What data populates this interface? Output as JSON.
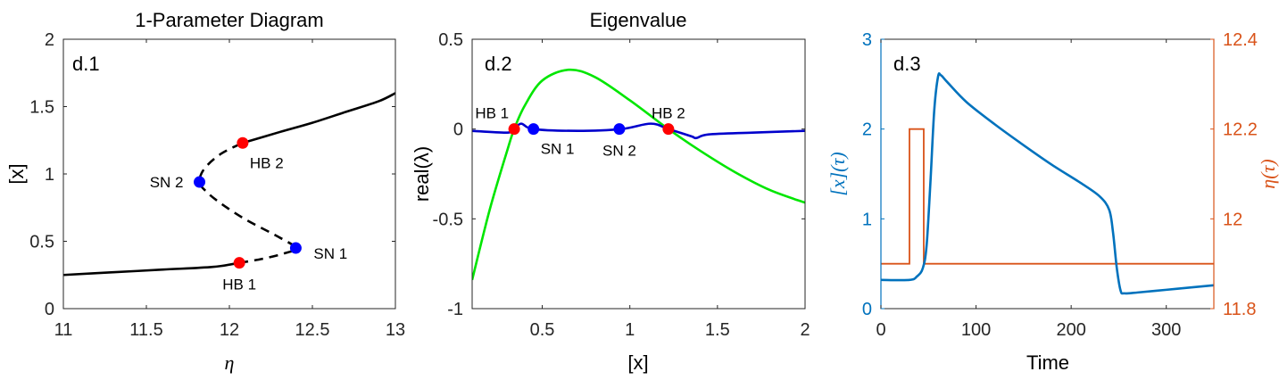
{
  "chart_data": [
    {
      "type": "line",
      "title": "1-Parameter Diagram",
      "panel_label": "d.1",
      "xlabel": "η",
      "ylabel": "[x]",
      "xlim": [
        11,
        13
      ],
      "ylim": [
        0,
        2
      ],
      "xticks": [
        "11",
        "11.5",
        "12",
        "12.5",
        "13"
      ],
      "yticks": [
        "0",
        "0.5",
        "1",
        "1.5",
        "2"
      ],
      "grid": false,
      "series": [
        {
          "style": "solid",
          "color": "#000000",
          "x": [
            11.0,
            11.3,
            11.6,
            11.9,
            12.06
          ],
          "y": [
            0.25,
            0.27,
            0.29,
            0.31,
            0.34
          ]
        },
        {
          "style": "dashed",
          "color": "#000000",
          "x": [
            12.06,
            12.2,
            12.33,
            12.4,
            12.3,
            12.1,
            11.95,
            11.86,
            11.82,
            11.85,
            11.95,
            12.08
          ],
          "y": [
            0.34,
            0.37,
            0.41,
            0.45,
            0.53,
            0.66,
            0.78,
            0.87,
            0.94,
            1.04,
            1.15,
            1.23
          ]
        },
        {
          "style": "solid",
          "color": "#000000",
          "x": [
            12.08,
            12.3,
            12.5,
            12.7,
            12.9,
            13.0
          ],
          "y": [
            1.23,
            1.31,
            1.38,
            1.46,
            1.54,
            1.6
          ]
        }
      ],
      "points": [
        {
          "label": "HB 2",
          "x": 12.08,
          "y": 1.23,
          "color": "#ff0000",
          "label_pos": "below-right"
        },
        {
          "label": "SN 2",
          "x": 11.82,
          "y": 0.94,
          "color": "#0000ff",
          "label_pos": "left"
        },
        {
          "label": "SN 1",
          "x": 12.4,
          "y": 0.45,
          "color": "#0000ff",
          "label_pos": "right"
        },
        {
          "label": "HB 1",
          "x": 12.06,
          "y": 0.34,
          "color": "#ff0000",
          "label_pos": "below"
        }
      ]
    },
    {
      "type": "line",
      "title": "Eigenvalue",
      "panel_label": "d.2",
      "xlabel": "[x]",
      "ylabel": "real(λ)",
      "xlim": [
        0.1,
        2
      ],
      "ylim": [
        -1,
        0.5
      ],
      "xticks": [
        0.5,
        1,
        1.5,
        2
      ],
      "yticks": [
        -1,
        -0.5,
        0,
        0.5
      ],
      "xtick_labels": [
        "0.5",
        "1",
        "1.5",
        "2"
      ],
      "ytick_labels": [
        "-1",
        "-0.5",
        "0",
        "0.5"
      ],
      "grid": false,
      "series": [
        {
          "color": "#00e600",
          "x": [
            0.1,
            0.2,
            0.3,
            0.34,
            0.4,
            0.5,
            0.65,
            0.8,
            1.0,
            1.22,
            1.4,
            1.6,
            1.8,
            2.0
          ],
          "y": [
            -0.84,
            -0.45,
            -0.12,
            0.0,
            0.13,
            0.27,
            0.33,
            0.29,
            0.16,
            0.0,
            -0.12,
            -0.24,
            -0.34,
            -0.41
          ]
        },
        {
          "color": "#0000cc",
          "x": [
            0.1,
            0.3,
            0.34,
            0.38,
            0.45,
            0.7,
            0.95,
            1.12,
            1.22,
            1.35,
            1.38,
            1.45,
            1.7,
            2.0
          ],
          "y": [
            -0.01,
            -0.02,
            0.0,
            0.03,
            0.0,
            -0.01,
            0.0,
            0.03,
            0.0,
            -0.04,
            -0.05,
            -0.03,
            -0.02,
            -0.01
          ]
        }
      ],
      "points": [
        {
          "label": "HB 1",
          "x": 0.34,
          "y": 0.0,
          "color": "#ff0000",
          "label_pos": "above-left"
        },
        {
          "label": "SN 1",
          "x": 0.45,
          "y": 0.0,
          "color": "#0000ff",
          "label_pos": "below-right"
        },
        {
          "label": "SN 2",
          "x": 0.94,
          "y": 0.0,
          "color": "#0000ff",
          "label_pos": "below"
        },
        {
          "label": "HB 2",
          "x": 1.22,
          "y": 0.0,
          "color": "#ff0000",
          "label_pos": "above"
        }
      ]
    },
    {
      "type": "line",
      "title": "",
      "panel_label": "d.3",
      "xlabel": "Time",
      "ylabel_left": "[x](τ)",
      "ylabel_right": "η(τ)",
      "xlim": [
        0,
        350
      ],
      "ylim_left": [
        0,
        3
      ],
      "ylim_right": [
        11.8,
        12.4
      ],
      "xticks": [
        0,
        100,
        200,
        300
      ],
      "yticks_left": [
        0,
        1,
        2,
        3
      ],
      "yticks_right": [
        11.8,
        12,
        12.2,
        12.4
      ],
      "xtick_labels": [
        "0",
        "100",
        "200",
        "300"
      ],
      "ytick_labels_left": [
        "0",
        "1",
        "2",
        "3"
      ],
      "ytick_labels_right": [
        "11.8",
        "12",
        "12.2",
        "12.4"
      ],
      "left_color": "#0072bd",
      "right_color": "#d95319",
      "grid": false,
      "series": [
        {
          "name": "[x](τ)",
          "axis": "left",
          "color": "#0072bd",
          "x": [
            0,
            30,
            38,
            44,
            48,
            52,
            56,
            60,
            63,
            70,
            90,
            120,
            150,
            180,
            210,
            230,
            240,
            244,
            248,
            252,
            256,
            270,
            300,
            330,
            350
          ],
          "y": [
            0.32,
            0.32,
            0.36,
            0.45,
            0.7,
            1.4,
            2.2,
            2.58,
            2.6,
            2.52,
            2.3,
            2.05,
            1.82,
            1.6,
            1.4,
            1.25,
            1.1,
            0.85,
            0.45,
            0.2,
            0.17,
            0.18,
            0.21,
            0.24,
            0.26
          ]
        },
        {
          "name": "η(τ)",
          "axis": "right",
          "color": "#d95319",
          "x": [
            0,
            30,
            30,
            45,
            45,
            350
          ],
          "y": [
            11.9,
            11.9,
            12.2,
            12.2,
            11.9,
            11.9
          ]
        }
      ]
    }
  ]
}
